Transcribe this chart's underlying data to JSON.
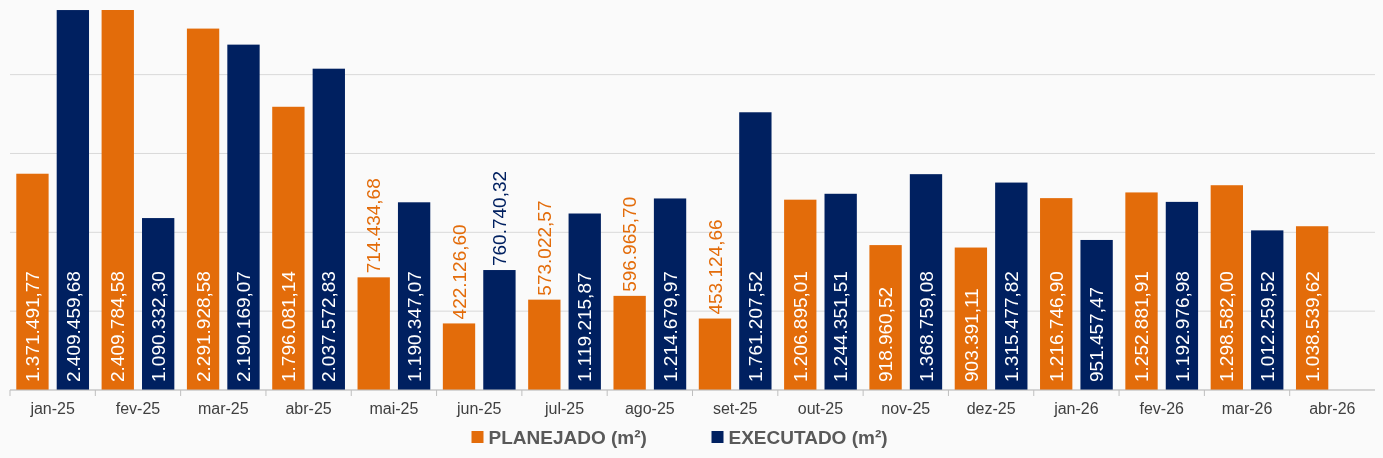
{
  "chart_data": {
    "type": "bar",
    "categories": [
      "jan-25",
      "fev-25",
      "mar-25",
      "abr-25",
      "mai-25",
      "jun-25",
      "jul-25",
      "ago-25",
      "set-25",
      "out-25",
      "nov-25",
      "dez-25",
      "jan-26",
      "fev-26",
      "mar-26",
      "abr-26"
    ],
    "series": [
      {
        "name": "PLANEJADO (m²)",
        "color": "#e36c0a",
        "values": [
          1371491.77,
          2409784.58,
          2291928.58,
          1796081.14,
          714434.68,
          422126.6,
          573022.57,
          596965.7,
          453124.66,
          1206895.01,
          918960.52,
          903391.11,
          1216746.9,
          1252881.91,
          1298582.0,
          1038539.62
        ],
        "value_labels": [
          "1.371.491,77",
          "2.409.784,58",
          "2.291.928,58",
          "1.796.081,14",
          "714.434,68",
          "422.126,60",
          "573.022,57",
          "596.965,70",
          "453.124,66",
          "1.206.895,01",
          "918.960,52",
          "903.391,11",
          "1.216.746,90",
          "1.252.881,91",
          "1.298.582,00",
          "1.038.539,62"
        ]
      },
      {
        "name": "EXECUTADO (m²)",
        "color": "#002060",
        "values": [
          2409459.68,
          1090332.3,
          2190169.07,
          2037572.83,
          1190347.07,
          760740.32,
          1119215.87,
          1214679.97,
          1761207.52,
          1244351.51,
          1368759.08,
          1315477.82,
          951457.47,
          1192976.98,
          1012259.52,
          null
        ],
        "value_labels": [
          "2.409.459,68",
          "1.090.332,30",
          "2.190.169,07",
          "2.037.572,83",
          "1.190.347,07",
          "760.740,32",
          "1.119.215,87",
          "1.214.679,97",
          "1.761.207,52",
          "1.244.351,51",
          "1.368.759,08",
          "1.315.477,82",
          "951.457,47",
          "1.192.976,98",
          "1.012.259,52",
          null
        ]
      }
    ],
    "yticks": [
      {
        "value": 0,
        "label": null
      },
      {
        "value": 500000,
        "label": null
      },
      {
        "value": 1000000,
        "label": null
      },
      {
        "value": 1500000,
        "label": null
      },
      {
        "value": 2000000,
        "label": null
      }
    ],
    "tick_labels": "x",
    "grid": "y",
    "legend": "bottom"
  }
}
